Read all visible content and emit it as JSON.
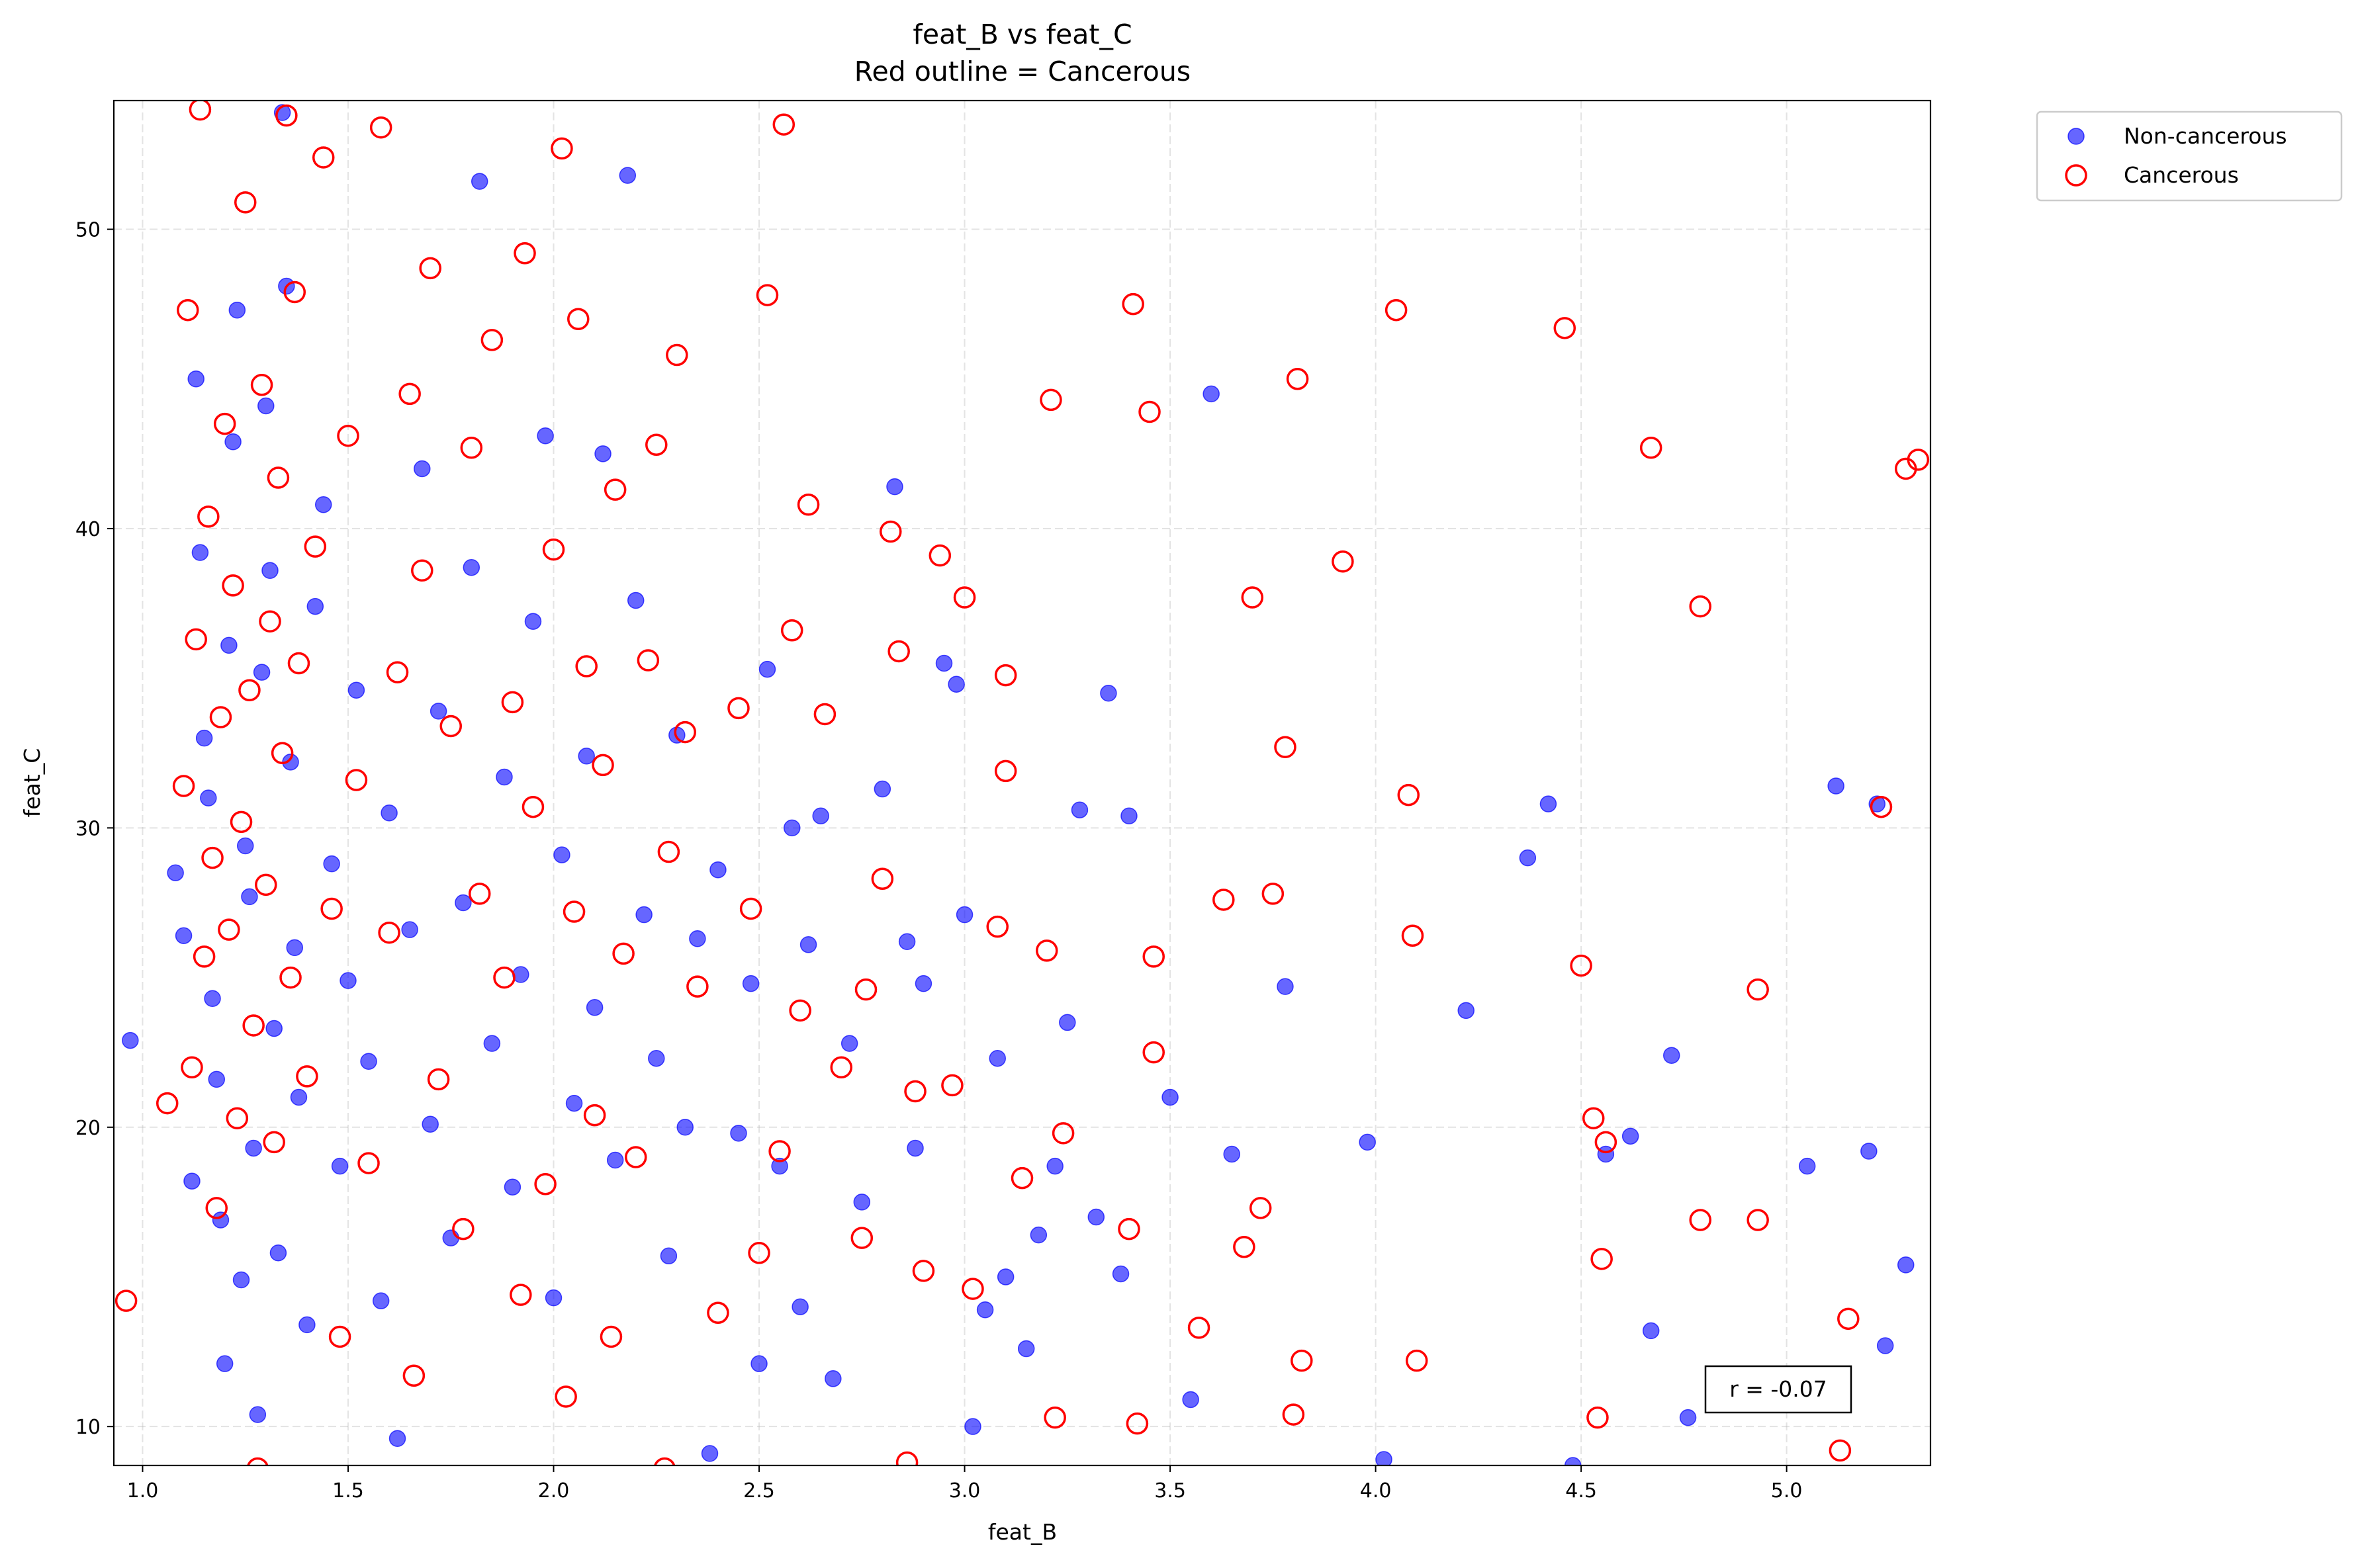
{
  "chart_data": {
    "type": "scatter",
    "title": "feat_B vs feat_C",
    "subtitle": "Red outline = Cancerous",
    "xlabel": "feat_B",
    "ylabel": "feat_C",
    "xlim": [
      0.93,
      5.35
    ],
    "ylim": [
      8.7,
      54.3
    ],
    "xticks": [
      "1.0",
      "1.5",
      "2.0",
      "2.5",
      "3.0",
      "3.5",
      "4.0",
      "4.5",
      "5.0"
    ],
    "xtick_values": [
      1.0,
      1.5,
      2.0,
      2.5,
      3.0,
      3.5,
      4.0,
      4.5,
      5.0
    ],
    "yticks": [
      "10",
      "20",
      "30",
      "40",
      "50"
    ],
    "ytick_values": [
      10,
      20,
      30,
      40,
      50
    ],
    "grid": true,
    "legend_position": "outside top-right",
    "annotation": "r = -0.07",
    "colors": {
      "non_cancerous": "#0000ff",
      "cancerous": "#ff0000"
    },
    "series": [
      {
        "name": "Non-cancerous",
        "marker": "filled-circle",
        "color": "#0000ff",
        "points": [
          [
            0.97,
            22.9
          ],
          [
            1.08,
            28.5
          ],
          [
            1.1,
            26.4
          ],
          [
            1.12,
            18.2
          ],
          [
            1.13,
            45.0
          ],
          [
            1.14,
            39.2
          ],
          [
            1.15,
            33.0
          ],
          [
            1.16,
            31.0
          ],
          [
            1.17,
            24.3
          ],
          [
            1.18,
            21.6
          ],
          [
            1.19,
            16.9
          ],
          [
            1.2,
            12.1
          ],
          [
            1.21,
            36.1
          ],
          [
            1.22,
            42.9
          ],
          [
            1.23,
            47.3
          ],
          [
            1.24,
            14.9
          ],
          [
            1.25,
            29.4
          ],
          [
            1.26,
            27.7
          ],
          [
            1.27,
            19.3
          ],
          [
            1.28,
            10.4
          ],
          [
            1.29,
            35.2
          ],
          [
            1.3,
            44.1
          ],
          [
            1.31,
            38.6
          ],
          [
            1.32,
            23.3
          ],
          [
            1.33,
            15.8
          ],
          [
            1.34,
            53.9
          ],
          [
            1.35,
            48.1
          ],
          [
            1.36,
            32.2
          ],
          [
            1.37,
            26.0
          ],
          [
            1.38,
            21.0
          ],
          [
            1.4,
            13.4
          ],
          [
            1.42,
            37.4
          ],
          [
            1.44,
            40.8
          ],
          [
            1.46,
            28.8
          ],
          [
            1.48,
            18.7
          ],
          [
            1.5,
            24.9
          ],
          [
            1.52,
            34.6
          ],
          [
            1.55,
            22.2
          ],
          [
            1.58,
            14.2
          ],
          [
            1.6,
            30.5
          ],
          [
            1.62,
            9.6
          ],
          [
            1.65,
            26.6
          ],
          [
            1.68,
            42.0
          ],
          [
            1.7,
            20.1
          ],
          [
            1.72,
            33.9
          ],
          [
            1.75,
            16.3
          ],
          [
            1.78,
            27.5
          ],
          [
            1.8,
            38.7
          ],
          [
            1.82,
            51.6
          ],
          [
            1.85,
            22.8
          ],
          [
            1.88,
            31.7
          ],
          [
            1.9,
            18.0
          ],
          [
            1.92,
            25.1
          ],
          [
            1.95,
            36.9
          ],
          [
            1.98,
            43.1
          ],
          [
            2.0,
            14.3
          ],
          [
            2.02,
            29.1
          ],
          [
            2.05,
            20.8
          ],
          [
            2.08,
            32.4
          ],
          [
            2.1,
            24.0
          ],
          [
            2.12,
            42.5
          ],
          [
            2.15,
            18.9
          ],
          [
            2.18,
            51.8
          ],
          [
            2.2,
            37.6
          ],
          [
            2.22,
            27.1
          ],
          [
            2.25,
            22.3
          ],
          [
            2.28,
            15.7
          ],
          [
            2.3,
            33.1
          ],
          [
            2.32,
            20.0
          ],
          [
            2.35,
            26.3
          ],
          [
            2.38,
            9.1
          ],
          [
            2.4,
            28.6
          ],
          [
            2.45,
            19.8
          ],
          [
            2.48,
            24.8
          ],
          [
            2.5,
            12.1
          ],
          [
            2.52,
            35.3
          ],
          [
            2.55,
            18.7
          ],
          [
            2.58,
            30.0
          ],
          [
            2.6,
            14.0
          ],
          [
            2.62,
            26.1
          ],
          [
            2.65,
            30.4
          ],
          [
            2.68,
            11.6
          ],
          [
            2.72,
            22.8
          ],
          [
            2.75,
            17.5
          ],
          [
            2.8,
            31.3
          ],
          [
            2.83,
            41.4
          ],
          [
            2.86,
            26.2
          ],
          [
            2.88,
            19.3
          ],
          [
            2.9,
            24.8
          ],
          [
            2.95,
            35.5
          ],
          [
            2.98,
            34.8
          ],
          [
            3.0,
            27.1
          ],
          [
            3.02,
            10.0
          ],
          [
            3.05,
            13.9
          ],
          [
            3.08,
            22.3
          ],
          [
            3.1,
            15.0
          ],
          [
            3.15,
            12.6
          ],
          [
            3.18,
            16.4
          ],
          [
            3.22,
            18.7
          ],
          [
            3.25,
            23.5
          ],
          [
            3.28,
            30.6
          ],
          [
            3.32,
            17.0
          ],
          [
            3.35,
            34.5
          ],
          [
            3.38,
            15.1
          ],
          [
            3.4,
            30.4
          ],
          [
            3.5,
            21.0
          ],
          [
            3.55,
            10.9
          ],
          [
            3.6,
            44.5
          ],
          [
            3.65,
            19.1
          ],
          [
            3.78,
            24.7
          ],
          [
            3.98,
            19.5
          ],
          [
            4.02,
            8.9
          ],
          [
            4.22,
            23.9
          ],
          [
            4.37,
            29.0
          ],
          [
            4.42,
            30.8
          ],
          [
            4.48,
            8.7
          ],
          [
            4.56,
            19.1
          ],
          [
            4.62,
            19.7
          ],
          [
            4.67,
            13.2
          ],
          [
            4.72,
            22.4
          ],
          [
            4.76,
            10.3
          ],
          [
            5.05,
            18.7
          ],
          [
            5.12,
            31.4
          ],
          [
            5.2,
            19.2
          ],
          [
            5.22,
            30.8
          ],
          [
            5.24,
            12.7
          ],
          [
            5.29,
            15.4
          ]
        ]
      },
      {
        "name": "Cancerous",
        "marker": "hollow-circle",
        "color": "#ff0000",
        "points": [
          [
            0.96,
            14.2
          ],
          [
            1.06,
            20.8
          ],
          [
            1.1,
            31.4
          ],
          [
            1.11,
            47.3
          ],
          [
            1.12,
            22.0
          ],
          [
            1.13,
            36.3
          ],
          [
            1.14,
            54.0
          ],
          [
            1.15,
            25.7
          ],
          [
            1.16,
            40.4
          ],
          [
            1.17,
            29.0
          ],
          [
            1.18,
            17.3
          ],
          [
            1.19,
            33.7
          ],
          [
            1.2,
            43.5
          ],
          [
            1.21,
            26.6
          ],
          [
            1.22,
            38.1
          ],
          [
            1.23,
            20.3
          ],
          [
            1.24,
            30.2
          ],
          [
            1.25,
            50.9
          ],
          [
            1.26,
            34.6
          ],
          [
            1.27,
            23.4
          ],
          [
            1.28,
            8.6
          ],
          [
            1.29,
            44.8
          ],
          [
            1.3,
            28.1
          ],
          [
            1.31,
            36.9
          ],
          [
            1.32,
            19.5
          ],
          [
            1.33,
            41.7
          ],
          [
            1.34,
            32.5
          ],
          [
            1.35,
            53.8
          ],
          [
            1.36,
            25.0
          ],
          [
            1.37,
            47.9
          ],
          [
            1.38,
            35.5
          ],
          [
            1.4,
            21.7
          ],
          [
            1.42,
            39.4
          ],
          [
            1.44,
            52.4
          ],
          [
            1.46,
            27.3
          ],
          [
            1.48,
            13.0
          ],
          [
            1.5,
            43.1
          ],
          [
            1.52,
            31.6
          ],
          [
            1.55,
            18.8
          ],
          [
            1.58,
            53.4
          ],
          [
            1.6,
            26.5
          ],
          [
            1.62,
            35.2
          ],
          [
            1.65,
            44.5
          ],
          [
            1.66,
            11.7
          ],
          [
            1.68,
            38.6
          ],
          [
            1.7,
            48.7
          ],
          [
            1.72,
            21.6
          ],
          [
            1.75,
            33.4
          ],
          [
            1.78,
            16.6
          ],
          [
            1.8,
            42.7
          ],
          [
            1.82,
            27.8
          ],
          [
            1.85,
            46.3
          ],
          [
            1.88,
            25.0
          ],
          [
            1.9,
            34.2
          ],
          [
            1.92,
            14.4
          ],
          [
            1.93,
            49.2
          ],
          [
            1.95,
            30.7
          ],
          [
            1.98,
            18.1
          ],
          [
            2.0,
            39.3
          ],
          [
            2.02,
            52.7
          ],
          [
            2.03,
            11.0
          ],
          [
            2.05,
            27.2
          ],
          [
            2.06,
            47.0
          ],
          [
            2.08,
            35.4
          ],
          [
            2.1,
            20.4
          ],
          [
            2.12,
            32.1
          ],
          [
            2.14,
            13.0
          ],
          [
            2.15,
            41.3
          ],
          [
            2.17,
            25.8
          ],
          [
            2.2,
            19.0
          ],
          [
            2.23,
            35.6
          ],
          [
            2.25,
            42.8
          ],
          [
            2.27,
            8.6
          ],
          [
            2.28,
            29.2
          ],
          [
            2.3,
            45.8
          ],
          [
            2.32,
            33.2
          ],
          [
            2.35,
            24.7
          ],
          [
            2.4,
            13.8
          ],
          [
            2.45,
            34.0
          ],
          [
            2.48,
            27.3
          ],
          [
            2.5,
            15.8
          ],
          [
            2.52,
            47.8
          ],
          [
            2.55,
            19.2
          ],
          [
            2.56,
            53.5
          ],
          [
            2.58,
            36.6
          ],
          [
            2.6,
            23.9
          ],
          [
            2.62,
            40.8
          ],
          [
            2.66,
            33.8
          ],
          [
            2.7,
            22.0
          ],
          [
            2.75,
            16.3
          ],
          [
            2.76,
            24.6
          ],
          [
            2.8,
            28.3
          ],
          [
            2.82,
            39.9
          ],
          [
            2.84,
            35.9
          ],
          [
            2.86,
            8.8
          ],
          [
            2.88,
            21.2
          ],
          [
            2.9,
            15.2
          ],
          [
            2.94,
            39.1
          ],
          [
            2.97,
            21.4
          ],
          [
            3.0,
            37.7
          ],
          [
            3.02,
            14.6
          ],
          [
            3.08,
            26.7
          ],
          [
            3.1,
            35.1
          ],
          [
            3.1,
            31.9
          ],
          [
            3.14,
            18.3
          ],
          [
            3.2,
            25.9
          ],
          [
            3.21,
            44.3
          ],
          [
            3.22,
            10.3
          ],
          [
            3.24,
            19.8
          ],
          [
            3.4,
            16.6
          ],
          [
            3.42,
            10.1
          ],
          [
            3.41,
            47.5
          ],
          [
            3.45,
            43.9
          ],
          [
            3.46,
            25.7
          ],
          [
            3.46,
            22.5
          ],
          [
            3.57,
            13.3
          ],
          [
            3.63,
            27.6
          ],
          [
            3.68,
            16.0
          ],
          [
            3.7,
            37.7
          ],
          [
            3.72,
            17.3
          ],
          [
            3.75,
            27.8
          ],
          [
            3.78,
            32.7
          ],
          [
            3.8,
            10.4
          ],
          [
            3.81,
            45.0
          ],
          [
            3.82,
            12.2
          ],
          [
            3.92,
            38.9
          ],
          [
            4.05,
            47.3
          ],
          [
            4.08,
            31.1
          ],
          [
            4.09,
            26.4
          ],
          [
            4.1,
            12.2
          ],
          [
            4.46,
            46.7
          ],
          [
            4.5,
            25.4
          ],
          [
            4.53,
            20.3
          ],
          [
            4.54,
            10.3
          ],
          [
            4.55,
            15.6
          ],
          [
            4.56,
            19.5
          ],
          [
            4.67,
            42.7
          ],
          [
            4.79,
            37.4
          ],
          [
            4.79,
            16.9
          ],
          [
            4.93,
            24.6
          ],
          [
            4.93,
            16.9
          ],
          [
            5.13,
            9.2
          ],
          [
            5.15,
            13.6
          ],
          [
            5.23,
            30.7
          ],
          [
            5.29,
            42.0
          ],
          [
            5.32,
            42.3
          ]
        ]
      }
    ]
  }
}
